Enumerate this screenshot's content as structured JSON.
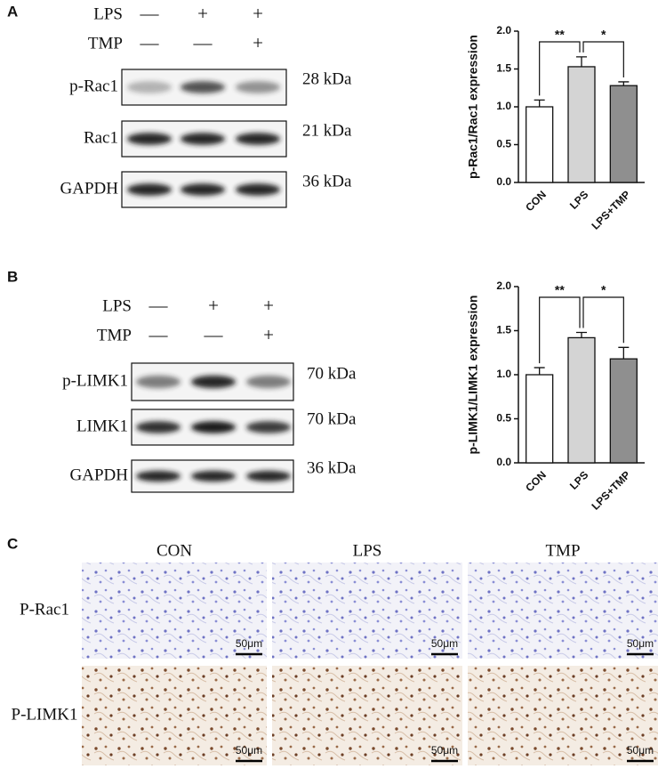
{
  "panel_labels": [
    "A",
    "B",
    "C"
  ],
  "blots": [
    {
      "treatments": [
        {
          "name": "LPS",
          "signs": [
            "—",
            "+",
            "+"
          ]
        },
        {
          "name": "TMP",
          "signs": [
            "—",
            "—",
            "+"
          ]
        }
      ],
      "bands": [
        {
          "name": "p-Rac1",
          "size": "28 kDa"
        },
        {
          "name": "Rac1",
          "size": "21 kDa"
        },
        {
          "name": "GAPDH",
          "size": "36 kDa"
        }
      ]
    },
    {
      "treatments": [
        {
          "name": "LPS",
          "signs": [
            "—",
            "+",
            "+"
          ]
        },
        {
          "name": "TMP",
          "signs": [
            "—",
            "—",
            "+"
          ]
        }
      ],
      "bands": [
        {
          "name": "p-LIMK1",
          "size": "70 kDa"
        },
        {
          "name": "LIMK1",
          "size": "70 kDa"
        },
        {
          "name": "GAPDH",
          "size": "36 kDa"
        }
      ]
    }
  ],
  "chart_data": [
    {
      "type": "bar",
      "y_label": "p-Rac1/Rac1 expression",
      "categories": [
        "CON",
        "LPS",
        "LPS+TMP"
      ],
      "values": [
        1.0,
        1.53,
        1.28
      ],
      "errors": [
        0.09,
        0.13,
        0.05
      ],
      "colors": [
        "#ffffff",
        "#d4d4d4",
        "#8f8f8f"
      ],
      "ylim": [
        0,
        2
      ],
      "yticks": [
        {
          "value": 0,
          "label": "0.0"
        },
        0.5,
        {
          "value": 1,
          "label": "1.0"
        },
        1.5,
        {
          "value": 2,
          "label": "2.0"
        }
      ],
      "significance": [
        "**",
        "*"
      ]
    },
    {
      "type": "bar",
      "y_label": "p-LIMK1/LIMK1 expression",
      "categories": [
        "CON",
        "LPS",
        "LPS+TMP"
      ],
      "values": [
        1.0,
        1.42,
        1.18
      ],
      "errors": [
        0.08,
        0.06,
        0.13
      ],
      "colors": [
        "#ffffff",
        "#d4d4d4",
        "#8f8f8f"
      ],
      "ylim": [
        0,
        2
      ],
      "yticks": [
        {
          "value": 0,
          "label": "0.0"
        },
        0.5,
        {
          "value": 1,
          "label": "1.0"
        },
        1.5,
        {
          "value": 2,
          "label": "2.0"
        }
      ],
      "significance": [
        "**",
        "*"
      ]
    }
  ],
  "histology": {
    "columns": [
      "CON",
      "LPS",
      "TMP"
    ],
    "rows": [
      "P-Rac1",
      "P-LIMK1"
    ],
    "scale_bar": "50μm"
  }
}
